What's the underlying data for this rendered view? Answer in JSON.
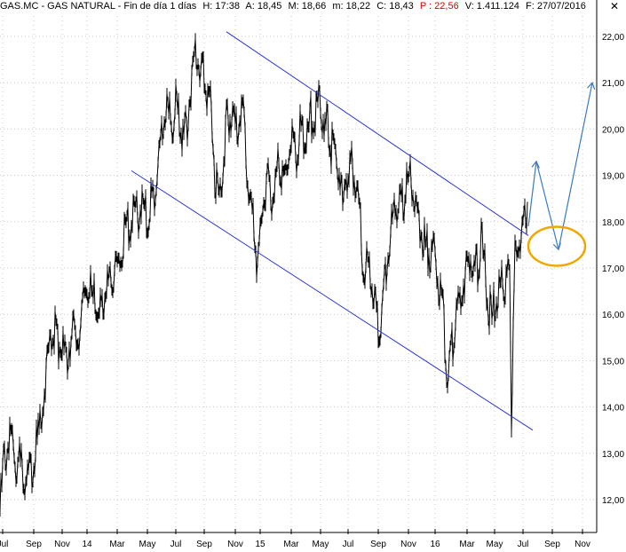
{
  "header": {
    "symbol": "GAS.MC - GAS NATURAL - Fin de día 1 días",
    "h": "H: 17:38",
    "a": "A: 18,45",
    "m": "M: 18,66",
    "mn": "m: 18,22",
    "c": "C: 18,43",
    "p": "P : 22,56",
    "v": "V: 1.411.124",
    "f": "F: 27/07/2016",
    "close_glyph": "✕"
  },
  "colors": {
    "price": "#000000",
    "channel": "#2a34d8",
    "projection": "#3a7ac0",
    "ellipse": "#f0a800",
    "grid": "#c8c8c8",
    "text_red": "#e00000"
  },
  "chart_data": {
    "type": "line",
    "title": "GAS.MC - GAS NATURAL",
    "ylim": [
      11.6,
      22.4
    ],
    "y_ticks": [
      "12,00",
      "13,00",
      "14,00",
      "15,00",
      "16,00",
      "17,00",
      "18,00",
      "19,00",
      "20,00",
      "21,00",
      "22,00"
    ],
    "x_ticks": [
      "Jul",
      "Sep",
      "Nov",
      "14",
      "Mar",
      "May",
      "Jul",
      "Sep",
      "Nov",
      "15",
      "Mar",
      "May",
      "Jul",
      "Sep",
      "Nov",
      "16",
      "Mar",
      "May",
      "Jul",
      "Sep",
      "Nov"
    ],
    "grid": true,
    "series": [
      {
        "name": "GAS.MC",
        "points": [
          [
            0,
            12.0
          ],
          [
            4,
            13.0
          ],
          [
            8,
            13.4
          ],
          [
            12,
            13.6
          ],
          [
            16,
            13.2
          ],
          [
            22,
            13.0
          ],
          [
            28,
            12.8
          ],
          [
            34,
            12.8
          ],
          [
            40,
            13.3
          ],
          [
            46,
            13.9
          ],
          [
            52,
            14.9
          ],
          [
            58,
            15.6
          ],
          [
            62,
            15.9
          ],
          [
            66,
            15.6
          ],
          [
            70,
            15.5
          ],
          [
            76,
            15.3
          ],
          [
            80,
            15.8
          ],
          [
            84,
            15.8
          ],
          [
            90,
            16.0
          ],
          [
            96,
            16.6
          ],
          [
            100,
            17.1
          ],
          [
            104,
            16.5
          ],
          [
            108,
            16.6
          ],
          [
            112,
            16.2
          ],
          [
            116,
            16.6
          ],
          [
            120,
            16.7
          ],
          [
            124,
            17.0
          ],
          [
            128,
            17.2
          ],
          [
            132,
            17.3
          ],
          [
            136,
            17.6
          ],
          [
            140,
            18.1
          ],
          [
            146,
            18.2
          ],
          [
            150,
            18.3
          ],
          [
            156,
            18.5
          ],
          [
            162,
            18.6
          ],
          [
            166,
            18.2
          ],
          [
            170,
            18.6
          ],
          [
            174,
            18.8
          ],
          [
            178,
            19.4
          ],
          [
            182,
            20.3
          ],
          [
            186,
            20.7
          ],
          [
            190,
            20.5
          ],
          [
            194,
            20.3
          ],
          [
            198,
            20.8
          ],
          [
            202,
            20.5
          ],
          [
            206,
            20.1
          ],
          [
            210,
            20.2
          ],
          [
            214,
            21.0
          ],
          [
            218,
            21.5
          ],
          [
            222,
            21.9
          ],
          [
            226,
            21.5
          ],
          [
            230,
            21.3
          ],
          [
            234,
            21.0
          ],
          [
            238,
            20.6
          ],
          [
            242,
            19.3
          ],
          [
            246,
            18.7
          ],
          [
            250,
            19.0
          ],
          [
            254,
            20.2
          ],
          [
            258,
            20.5
          ],
          [
            262,
            20.5
          ],
          [
            266,
            20.2
          ],
          [
            270,
            20.6
          ],
          [
            274,
            20.5
          ],
          [
            278,
            19.5
          ],
          [
            282,
            18.7
          ],
          [
            286,
            18.0
          ],
          [
            290,
            17.3
          ],
          [
            294,
            18.2
          ],
          [
            298,
            19.0
          ],
          [
            302,
            19.3
          ],
          [
            306,
            18.7
          ],
          [
            310,
            19.1
          ],
          [
            314,
            19.6
          ],
          [
            318,
            19.3
          ],
          [
            322,
            19.4
          ],
          [
            326,
            19.8
          ],
          [
            330,
            19.9
          ],
          [
            334,
            19.6
          ],
          [
            338,
            20.3
          ],
          [
            342,
            20.2
          ],
          [
            346,
            19.9
          ],
          [
            350,
            20.5
          ],
          [
            354,
            20.6
          ],
          [
            358,
            20.8
          ],
          [
            362,
            20.7
          ],
          [
            366,
            20.3
          ],
          [
            370,
            20.2
          ],
          [
            374,
            19.8
          ],
          [
            378,
            19.6
          ],
          [
            382,
            19.3
          ],
          [
            386,
            18.6
          ],
          [
            390,
            19.2
          ],
          [
            394,
            19.5
          ],
          [
            398,
            19.3
          ],
          [
            402,
            18.8
          ],
          [
            406,
            18.2
          ],
          [
            410,
            17.2
          ],
          [
            414,
            17.3
          ],
          [
            418,
            17.0
          ],
          [
            422,
            16.5
          ],
          [
            426,
            16.0
          ],
          [
            430,
            16.2
          ],
          [
            434,
            17.0
          ],
          [
            438,
            17.8
          ],
          [
            442,
            18.2
          ],
          [
            446,
            18.6
          ],
          [
            450,
            18.9
          ],
          [
            454,
            18.6
          ],
          [
            458,
            19.1
          ],
          [
            462,
            19.3
          ],
          [
            466,
            18.7
          ],
          [
            470,
            18.3
          ],
          [
            474,
            18.0
          ],
          [
            478,
            17.8
          ],
          [
            482,
            17.6
          ],
          [
            486,
            17.6
          ],
          [
            490,
            17.5
          ],
          [
            494,
            16.9
          ],
          [
            498,
            16.6
          ],
          [
            502,
            15.2
          ],
          [
            506,
            14.9
          ],
          [
            510,
            15.7
          ],
          [
            514,
            16.3
          ],
          [
            518,
            16.4
          ],
          [
            522,
            17.0
          ],
          [
            526,
            17.3
          ],
          [
            530,
            17.6
          ],
          [
            534,
            17.3
          ],
          [
            538,
            17.2
          ],
          [
            542,
            17.8
          ],
          [
            546,
            17.2
          ],
          [
            550,
            16.5
          ],
          [
            554,
            16.1
          ],
          [
            558,
            16.6
          ],
          [
            562,
            16.7
          ],
          [
            566,
            17.0
          ],
          [
            570,
            16.9
          ],
          [
            574,
            17.2
          ],
          [
            576,
            14.2
          ],
          [
            578,
            15.6
          ],
          [
            580,
            17.5
          ],
          [
            584,
            17.9
          ],
          [
            588,
            18.1
          ],
          [
            592,
            18.4
          ],
          [
            594,
            18.43
          ]
        ]
      }
    ],
    "annotations": [
      {
        "label": "upper channel",
        "from": [
          255,
          22.1
        ],
        "to": [
          595,
          17.7
        ]
      },
      {
        "label": "lower channel",
        "from": [
          148,
          19.1
        ],
        "to": [
          600,
          13.5
        ]
      },
      {
        "label": "projection",
        "path": [
          [
            595,
            17.9
          ],
          [
            604,
            19.3
          ],
          [
            629,
            17.4
          ],
          [
            667,
            21.0
          ]
        ]
      },
      {
        "label": "target zone",
        "center": [
          627,
          17.47
        ],
        "rx": 32,
        "ry": 22
      }
    ]
  }
}
